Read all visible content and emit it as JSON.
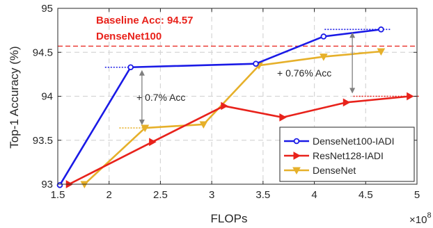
{
  "chart_data": {
    "type": "line",
    "xlabel": "FLOPs",
    "ylabel": "Top-1 Accuracy (%)",
    "x_multiplier_label": "×10",
    "x_multiplier_exp": "8",
    "xlim": [
      1.5,
      5.0
    ],
    "ylim": [
      93.0,
      95.0
    ],
    "xticks": [
      1.5,
      2,
      2.5,
      3,
      3.5,
      4,
      4.5,
      5
    ],
    "xtick_labels": [
      "1.5",
      "2",
      "2.5",
      "3",
      "3.5",
      "4",
      "4.5",
      "5"
    ],
    "yticks": [
      93,
      93.5,
      94,
      94.5,
      95
    ],
    "ytick_labels": [
      "93",
      "93.5",
      "94",
      "94.5",
      "95"
    ],
    "grid": true,
    "legend_position": "bottom-right",
    "baseline": {
      "value": 94.57,
      "label_line1": "Baseline Acc: 94.57",
      "label_line2": "DenseNet100",
      "color": "#e8221b"
    },
    "series": [
      {
        "name": "DenseNet100-IADI",
        "color": "#1a1ae6",
        "marker": "circle",
        "x": [
          1.52,
          2.21,
          3.43,
          4.09,
          4.65
        ],
        "y": [
          92.99,
          94.33,
          94.37,
          94.68,
          94.76
        ]
      },
      {
        "name": "ResNet128-IADI",
        "color": "#e8221b",
        "marker": "triangle-right",
        "x": [
          1.61,
          2.42,
          3.12,
          3.69,
          4.31,
          4.93
        ],
        "y": [
          93.0,
          93.48,
          93.89,
          93.76,
          93.93,
          94.0
        ]
      },
      {
        "name": "DenseNet",
        "color": "#e6b02a",
        "marker": "triangle-down",
        "x": [
          1.76,
          2.35,
          2.92,
          3.46,
          4.09,
          4.65
        ],
        "y": [
          93.0,
          93.64,
          93.68,
          94.35,
          94.45,
          94.51
        ]
      }
    ],
    "annotations": [
      {
        "text": "+ 0.7% Acc",
        "x_arrow": 2.32,
        "y_top": 94.33,
        "y_bottom": 93.64
      },
      {
        "text": "+ 0.76% Acc",
        "x_arrow": 4.37,
        "y_top": 94.76,
        "y_bottom": 94.0
      }
    ]
  }
}
